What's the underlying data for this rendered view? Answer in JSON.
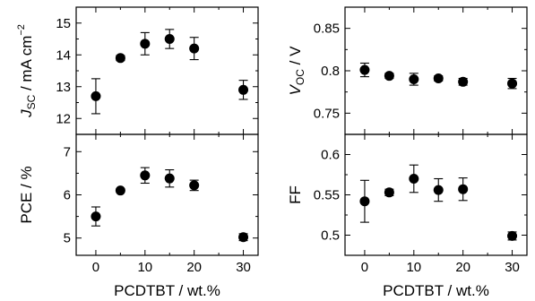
{
  "chart_data": [
    {
      "type": "scatter",
      "id": "jsc",
      "ylabel_prefix": "J",
      "ylabel_sub": "SC",
      "ylabel_main": " / mA cm",
      "ylabel_sup": "−2",
      "ylim": [
        11.5,
        15.5
      ],
      "yticks": [
        12,
        13,
        14,
        15
      ],
      "ytick_labels": [
        "12",
        "13",
        "14",
        "15"
      ],
      "xlim": [
        -4,
        33
      ],
      "x": [
        0,
        5,
        10,
        15,
        20,
        30
      ],
      "y": [
        12.7,
        13.9,
        14.35,
        14.5,
        14.2,
        12.9
      ],
      "err": [
        0.55,
        0.08,
        0.35,
        0.3,
        0.35,
        0.3
      ]
    },
    {
      "type": "scatter",
      "id": "voc",
      "ylabel_prefix": "V",
      "ylabel_sub": "OC",
      "ylabel_main": " / V",
      "ylabel_sup": "",
      "ylim": [
        0.725,
        0.875
      ],
      "yticks": [
        0.75,
        0.8,
        0.85
      ],
      "ytick_labels": [
        "0.75",
        "0.8",
        "0.85"
      ],
      "xlim": [
        -4,
        33
      ],
      "x": [
        0,
        5,
        10,
        15,
        20,
        30
      ],
      "y": [
        0.801,
        0.794,
        0.79,
        0.791,
        0.787,
        0.785
      ],
      "err": [
        0.008,
        0.003,
        0.007,
        0.003,
        0.004,
        0.006
      ]
    },
    {
      "type": "scatter",
      "id": "pce",
      "ylabel_prefix": "",
      "ylabel_sub": "",
      "ylabel_main": "PCE / %",
      "ylabel_sup": "",
      "ylim": [
        4.6,
        7.4
      ],
      "yticks": [
        5,
        6,
        7
      ],
      "ytick_labels": [
        "5",
        "6",
        "7"
      ],
      "xlim": [
        -4,
        33
      ],
      "x": [
        0,
        5,
        10,
        15,
        20,
        30
      ],
      "y": [
        5.5,
        6.1,
        6.45,
        6.38,
        6.22,
        5.02
      ],
      "err": [
        0.22,
        0.04,
        0.18,
        0.2,
        0.12,
        0.08
      ],
      "xticks": [
        0,
        10,
        20,
        30
      ],
      "xtick_labels": [
        "0",
        "10",
        "20",
        "30"
      ],
      "xlabel": "PCDTBT / wt.%"
    },
    {
      "type": "scatter",
      "id": "ff",
      "ylabel_prefix": "",
      "ylabel_sub": "",
      "ylabel_main": "FF",
      "ylabel_sup": "",
      "ylim": [
        0.475,
        0.625
      ],
      "yticks": [
        0.5,
        0.55,
        0.6
      ],
      "ytick_labels": [
        "0.5",
        "0.55",
        "0.6"
      ],
      "xlim": [
        -4,
        33
      ],
      "x": [
        0,
        5,
        10,
        15,
        20,
        30
      ],
      "y": [
        0.542,
        0.553,
        0.57,
        0.556,
        0.557,
        0.499
      ],
      "err": [
        0.026,
        0.004,
        0.017,
        0.014,
        0.014,
        0.005
      ],
      "xticks": [
        0,
        10,
        20,
        30
      ],
      "xtick_labels": [
        "0",
        "10",
        "20",
        "30"
      ],
      "xlabel": "PCDTBT / wt.%"
    }
  ]
}
